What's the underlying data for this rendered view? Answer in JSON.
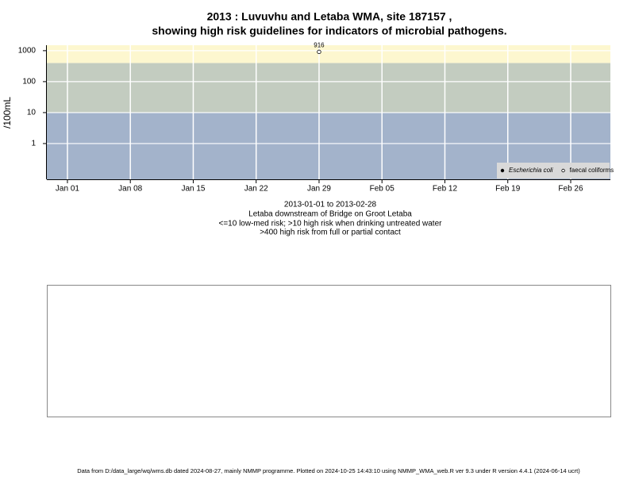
{
  "chart_data": {
    "type": "scatter",
    "title": [
      "2013 : Luvuvhu and Letaba WMA, site 187157 ,",
      "showing high risk guidelines for indicators of microbial pathogens."
    ],
    "subtitle": [
      "2013-01-01 to 2013-02-28",
      "Letaba downstream of Bridge on Groot Letaba",
      "<=10 low-med risk; >10 high risk when drinking untreated water",
      ">400 high risk from full or partial contact"
    ],
    "y_label": "/100mL",
    "log_y": true,
    "grid": true,
    "legend": "bottom-right",
    "bands": [
      {
        "upper": 10,
        "color": "#a3b3cb"
      },
      {
        "upper": 400,
        "color": "#c3ccc0"
      },
      {
        "upper": null,
        "color": "#fdf7cf"
      }
    ],
    "xlim": [
      "2012-12-29T17:00:00Z",
      "2013-03-02T10:00:00Z"
    ],
    "xticks": [
      {
        "value": "2013-01-01",
        "label": "Jan 01"
      },
      {
        "value": "2013-01-08",
        "label": "Jan 08"
      },
      {
        "value": "2013-01-15",
        "label": "Jan 15"
      },
      {
        "value": "2013-01-22",
        "label": "Jan 22"
      },
      {
        "value": "2013-01-29",
        "label": "Jan 29"
      },
      {
        "value": "2013-02-05",
        "label": "Feb 05"
      },
      {
        "value": "2013-02-12",
        "label": "Feb 12"
      },
      {
        "value": "2013-02-19",
        "label": "Feb 19"
      },
      {
        "value": "2013-02-26",
        "label": "Feb 26"
      }
    ],
    "ylim": [
      0.07,
      1500
    ],
    "yticks": [
      1,
      10,
      100,
      1000
    ],
    "series": [
      {
        "name": "Escherichia coli",
        "marker": "filled",
        "color": "#000000",
        "x": [],
        "values": []
      },
      {
        "name": "faecal coliforms",
        "marker": "open",
        "color": "#000000",
        "x": [
          "2013-01-29"
        ],
        "values": [
          916
        ]
      }
    ]
  },
  "footer": "Data from D:/data_large/wq/wms.db dated 2024-08-27, mainly NMMP programme. Plotted on 2024-10-25 14:43:10 using NMMP_WMA_web.R ver 9.3 under R version 4.4.1 (2024-06-14 ucrt)"
}
